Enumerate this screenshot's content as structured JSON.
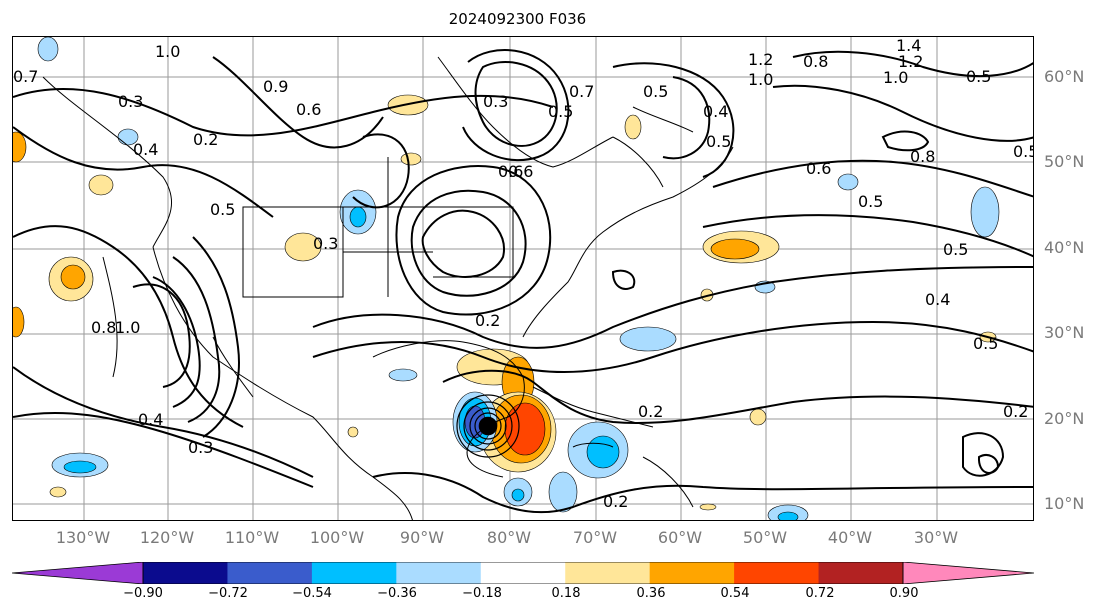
{
  "title": "2024092300 F036",
  "lon_labels": [
    "130°W",
    "120°W",
    "110°W",
    "100°W",
    "90°W",
    "80°W",
    "70°W",
    "60°W",
    "50°W",
    "40°W",
    "30°W"
  ],
  "lat_labels": [
    "60°N",
    "50°N",
    "40°N",
    "30°N",
    "20°N",
    "10°N"
  ],
  "colorbar": {
    "ticks": [
      "−0.90",
      "−0.72",
      "−0.54",
      "−0.36",
      "−0.18",
      "0.18",
      "0.36",
      "0.54",
      "0.72",
      "0.90"
    ],
    "colors": [
      "#9b3ad6",
      "#0b0b8e",
      "#3a5ccc",
      "#00bfff",
      "#aadcff",
      "#ffffff",
      "#ffe699",
      "#ffa500",
      "#ff4500",
      "#b22222",
      "#ff88bb"
    ]
  },
  "contour_labels": [
    "1.0",
    "0.3",
    "0.4",
    "0.2",
    "0.5",
    "0.3",
    "0.8",
    "1.0",
    "0.4",
    "0.3",
    "0.2",
    "0.2",
    "0.6",
    "0.7",
    "0.3",
    "0.5",
    "0.5",
    "0.4",
    "0.5",
    "1.2",
    "1.0",
    "0.8",
    "1.4",
    "1.2",
    "1.0",
    "0.5",
    "0.6",
    "0.8",
    "0.5",
    "0.5",
    "0.6",
    "0.4",
    "0.5",
    "0.2",
    "0.9",
    "0.6",
    "0.7",
    "0.2",
    "0.5"
  ]
}
